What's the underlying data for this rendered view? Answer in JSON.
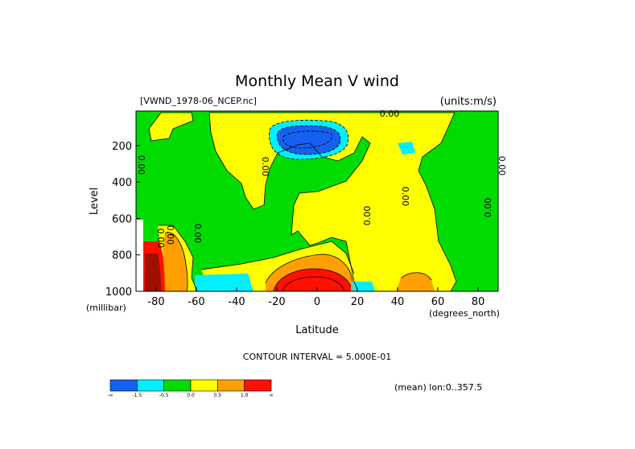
{
  "chart_data": {
    "type": "contour",
    "title": "Monthly Mean V wind",
    "dataset": "[VWND_1978-06_NCEP.nc]",
    "units": "(units:m/s)",
    "xlabel": "Latitude",
    "ylabel": "Level",
    "x_unit": "(degrees_north)",
    "y_unit": "(millibar)",
    "xlim": [
      -90,
      90
    ],
    "ylim": [
      1000,
      10
    ],
    "x_ticks": [
      -80,
      -60,
      -40,
      -20,
      0,
      20,
      40,
      60,
      80
    ],
    "x_tick_labels": [
      "-80",
      "-60",
      "-40",
      "-20",
      "0",
      "20",
      "40",
      "60",
      "80"
    ],
    "y_ticks": [
      200,
      400,
      600,
      800,
      1000
    ],
    "y_tick_labels": [
      "200",
      "400",
      "600",
      "800",
      "1000"
    ],
    "contour_interval": "CONTOUR INTERVAL = 5.000E-01",
    "mean_note": "(mean) lon:0..357.5",
    "contour_labels": [
      "0.00",
      "0.00",
      "0.00",
      "0.00",
      "0.00",
      "0.00",
      "0.00",
      "0.00",
      "0.00",
      "0.00"
    ],
    "colorbar": {
      "colors": [
        "#1560f0",
        "#00f0ff",
        "#00dc00",
        "#ffff00",
        "#ffa000",
        "#ff1000"
      ],
      "labels": [
        "-∞",
        "-1.5",
        "-0.5",
        "0.0",
        "0.5",
        "1.0",
        "∞"
      ]
    },
    "region_colors": {
      "strong_negative": "#1560f0",
      "negative": "#00f0ff",
      "weak_negative": "#00dc00",
      "weak_positive": "#ffff00",
      "positive": "#ffa000",
      "strong_positive": "#ff1000",
      "max_positive": "#a01000"
    }
  }
}
